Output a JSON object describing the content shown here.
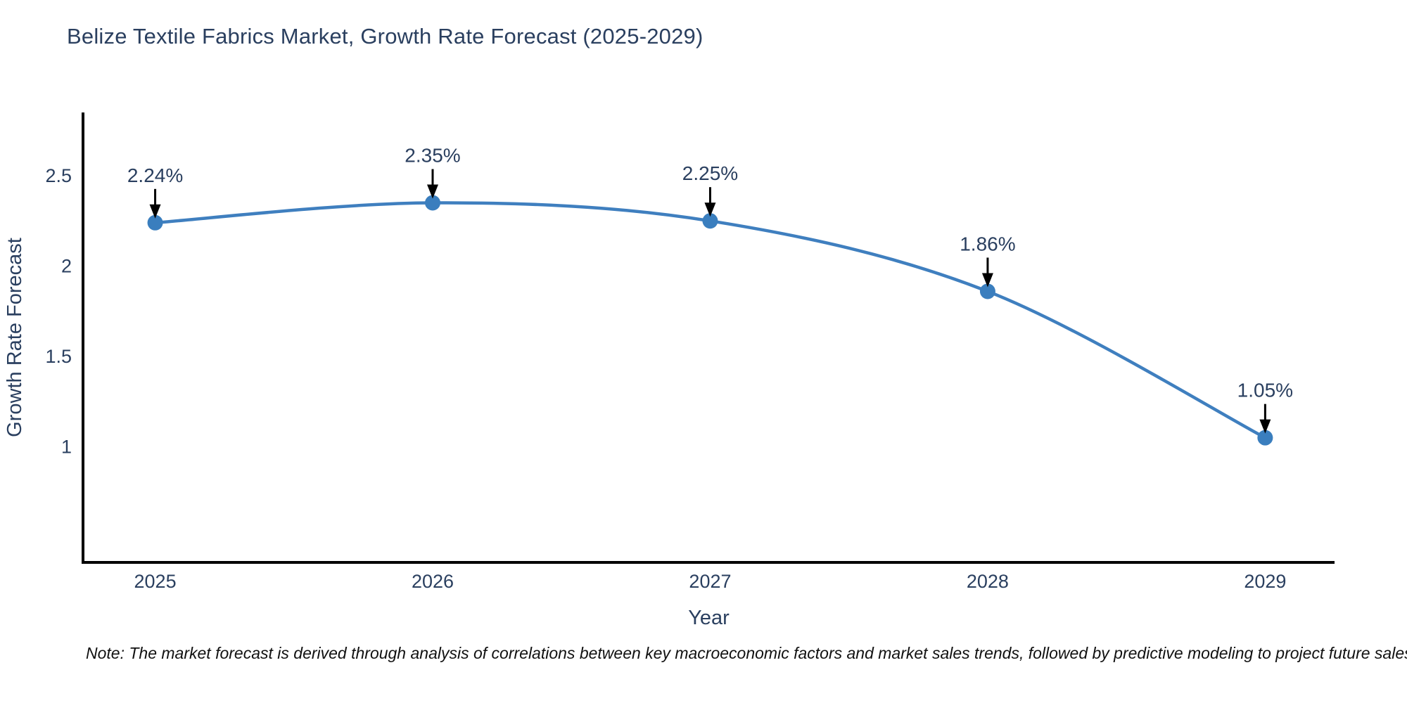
{
  "note": "Note: The market forecast is derived through analysis of correlations between key macroeconomic factors and market sales trends, followed by predictive modeling to project future sales",
  "colors": {
    "line": "#3f7fbf",
    "marker": "#3a7ebe",
    "text": "#2a3f5f",
    "axis": "#000000",
    "arrow": "#000000",
    "background": "#ffffff"
  },
  "chart_data": {
    "type": "line",
    "title": "Belize Textile Fabrics Market, Growth Rate Forecast (2025-2029)",
    "x": [
      2025,
      2026,
      2027,
      2028,
      2029
    ],
    "values": [
      2.24,
      2.35,
      2.25,
      1.86,
      1.05
    ],
    "point_labels": [
      "2.24%",
      "2.35%",
      "2.25%",
      "1.86%",
      "1.05%"
    ],
    "xlabel": "Year",
    "ylabel": "Growth Rate Forecast",
    "xticks": [
      "2025",
      "2026",
      "2027",
      "2028",
      "2029"
    ],
    "yticks": [
      1,
      1.5,
      2,
      2.5
    ],
    "ytick_labels": [
      "1",
      "1.5",
      "2",
      "2.5"
    ],
    "xlim": [
      2024.74,
      2029.25
    ],
    "ylim": [
      0.36,
      2.85
    ],
    "line_shape": "spline",
    "grid": false,
    "legend": "none",
    "annotations": "each point labeled with value and a downward black arrow"
  }
}
